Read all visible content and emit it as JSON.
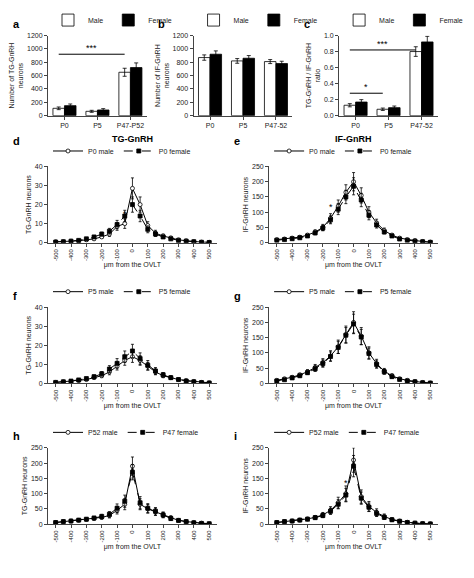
{
  "chart_data": [
    {
      "type": "bar",
      "categories": [
        "P0",
        "P5",
        "P47-P52"
      ],
      "series": [
        {
          "name": "Male",
          "color": "white",
          "values": [
            110,
            65,
            650
          ],
          "error": [
            20,
            15,
            60
          ]
        },
        {
          "name": "Female",
          "color": "black",
          "values": [
            150,
            85,
            720
          ],
          "error": [
            25,
            20,
            70
          ]
        }
      ],
      "ylabel": "Number of TG-GnRH\nneurons",
      "ylim": [
        0,
        1200
      ],
      "yticks": [
        0,
        200,
        400,
        600,
        800,
        1000,
        1200
      ],
      "grid": false,
      "legend": "upper left",
      "annotations": [
        {
          "text": "a"
        },
        {
          "text": "***",
          "x_from": "P0",
          "x_to": "P47-P52",
          "y": 920
        }
      ]
    },
    {
      "type": "bar",
      "categories": [
        "P0",
        "P5",
        "P47-52"
      ],
      "series": [
        {
          "name": "Male",
          "color": "white",
          "values": [
            870,
            820,
            810
          ],
          "error": [
            40,
            35,
            30
          ]
        },
        {
          "name": "Female",
          "color": "black",
          "values": [
            920,
            860,
            780
          ],
          "error": [
            50,
            40,
            35
          ]
        }
      ],
      "ylabel": "Number of IF-GnRH\nneurons",
      "ylim": [
        0,
        1200
      ],
      "yticks": [
        0,
        200,
        400,
        600,
        800,
        1000,
        1200
      ],
      "grid": false,
      "legend": "upper left",
      "annotations": [
        {
          "text": "b"
        }
      ]
    },
    {
      "type": "bar",
      "categories": [
        "P0",
        "P5",
        "P47-52"
      ],
      "series": [
        {
          "name": "Male",
          "color": "white",
          "values": [
            0.13,
            0.08,
            0.8
          ],
          "error": [
            0.02,
            0.015,
            0.06
          ]
        },
        {
          "name": "Female",
          "color": "black",
          "values": [
            0.17,
            0.1,
            0.92
          ],
          "error": [
            0.03,
            0.02,
            0.07
          ]
        }
      ],
      "ylabel": "TG-GnRH / IF-GnRH\nratio",
      "ylim": [
        0,
        1.0
      ],
      "yticks": [
        {
          "value": 0.0,
          "label": "0.0"
        },
        0.2,
        0.4,
        0.6,
        0.8,
        {
          "value": 1.0,
          "label": "1.0"
        }
      ],
      "grid": false,
      "legend": "upper left",
      "annotations": [
        {
          "text": "c"
        },
        {
          "text": "***",
          "x_from": "P0",
          "x_to": "P47-52",
          "y": 0.82
        },
        {
          "text": "*",
          "x_from": "P0",
          "x_to": "P5",
          "y": 0.28
        }
      ]
    },
    {
      "type": "line",
      "title": "TG-GnRH",
      "x": [
        -500,
        -450,
        -400,
        -350,
        -300,
        -250,
        -200,
        -150,
        -100,
        -50,
        0,
        50,
        100,
        150,
        200,
        250,
        300,
        350,
        400,
        450,
        500
      ],
      "xlim": [
        -550,
        550
      ],
      "xticks": [
        -500,
        -400,
        -300,
        -200,
        -100,
        0,
        100,
        200,
        300,
        400,
        500
      ],
      "xlabel": "μm from the OVLT",
      "ylabel": "TG-GnRH neurons",
      "ylim": [
        0,
        40
      ],
      "yticks": [
        0,
        10,
        20,
        30,
        40
      ],
      "grid": false,
      "legend": "upper left",
      "series": [
        {
          "name": "P0 male",
          "color": "black",
          "marker": "open circle",
          "line_style": "solid",
          "values": [
            0.5,
            0.5,
            0.8,
            1.0,
            1.5,
            2.0,
            3.0,
            4.5,
            8.5,
            10.0,
            28.5,
            20.0,
            9.0,
            5.0,
            3.5,
            2.5,
            1.5,
            1.0,
            0.5,
            0.3,
            0.2
          ],
          "error": [
            0.2,
            0.2,
            0.3,
            0.4,
            0.5,
            0.6,
            0.8,
            1.2,
            2.0,
            2.5,
            5.5,
            4.0,
            2.0,
            1.5,
            1.0,
            0.8,
            0.5,
            0.3,
            0.2,
            0.1,
            0.1
          ]
        },
        {
          "name": "P0 female",
          "color": "black",
          "marker": "filled square",
          "line_style": "dashed",
          "values": [
            0.3,
            0.5,
            0.8,
            1.2,
            2.0,
            3.0,
            4.5,
            6.0,
            9.5,
            14.0,
            20.0,
            14.0,
            7.0,
            4.5,
            3.0,
            2.0,
            1.2,
            0.8,
            0.5,
            0.2,
            0.1
          ],
          "error": [
            0.2,
            0.2,
            0.3,
            0.4,
            0.6,
            0.8,
            1.0,
            1.5,
            2.2,
            3.0,
            4.0,
            3.0,
            1.8,
            1.2,
            0.8,
            0.5,
            0.3,
            0.2,
            0.1,
            0.1,
            0.05
          ]
        }
      ],
      "annotations": [
        {
          "text": "d"
        },
        {
          "text": "*",
          "x": -50,
          "y": 11.5
        }
      ]
    },
    {
      "type": "line",
      "title": "IF-GnRH",
      "x": [
        -500,
        -450,
        -400,
        -350,
        -300,
        -250,
        -200,
        -150,
        -100,
        -50,
        0,
        50,
        100,
        150,
        200,
        250,
        300,
        350,
        400,
        450,
        500
      ],
      "xlim": [
        -550,
        550
      ],
      "xticks": [
        -500,
        -400,
        -300,
        -200,
        -100,
        0,
        100,
        200,
        300,
        400,
        500
      ],
      "xlabel": "μm from the OVLT",
      "ylabel": "IF-GnRH neurons",
      "ylim": [
        0,
        250
      ],
      "yticks": [
        0,
        50,
        100,
        150,
        200,
        250
      ],
      "grid": false,
      "legend": "upper left",
      "series": [
        {
          "name": "P0 male",
          "color": "black",
          "marker": "open circle",
          "line_style": "solid",
          "values": [
            10,
            12,
            15,
            18,
            25,
            35,
            50,
            80,
            120,
            165,
            200,
            155,
            100,
            65,
            40,
            25,
            15,
            10,
            7,
            4,
            2
          ],
          "error": [
            2,
            3,
            3,
            4,
            5,
            7,
            10,
            15,
            20,
            25,
            30,
            25,
            18,
            12,
            8,
            5,
            3,
            2,
            1.5,
            1,
            0.5
          ]
        },
        {
          "name": "P0 female",
          "color": "black",
          "marker": "filled square",
          "line_style": "dashed",
          "values": [
            8,
            10,
            13,
            16,
            22,
            32,
            48,
            75,
            110,
            150,
            185,
            140,
            90,
            58,
            35,
            22,
            12,
            8,
            5,
            3,
            1
          ],
          "error": [
            2,
            2,
            3,
            3,
            4,
            6,
            9,
            13,
            18,
            22,
            28,
            22,
            15,
            10,
            6,
            4,
            3,
            2,
            1,
            0.8,
            0.4
          ]
        }
      ],
      "annotations": [
        {
          "text": "e"
        },
        {
          "text": "*",
          "x": -150,
          "y": 95
        }
      ]
    },
    {
      "type": "line",
      "x": [
        -500,
        -450,
        -400,
        -350,
        -300,
        -250,
        -200,
        -150,
        -100,
        -50,
        0,
        50,
        100,
        150,
        200,
        250,
        300,
        350,
        400,
        450,
        500
      ],
      "xlim": [
        -550,
        550
      ],
      "xticks": [
        -500,
        -400,
        -300,
        -200,
        -100,
        0,
        100,
        200,
        300,
        400,
        500
      ],
      "xlabel": "μm from the OVLT",
      "ylabel": "TG-GnRH neurons",
      "ylim": [
        0,
        40
      ],
      "yticks": [
        0,
        10,
        20,
        30,
        40
      ],
      "grid": false,
      "legend": "upper left",
      "series": [
        {
          "name": "P5 male",
          "color": "black",
          "marker": "open circle",
          "line_style": "solid",
          "values": [
            0.5,
            0.8,
            1.0,
            1.5,
            2.0,
            3.0,
            4.0,
            6.0,
            9.0,
            12.0,
            14.0,
            12.0,
            9.0,
            6.0,
            4.0,
            3.0,
            2.0,
            1.5,
            1.0,
            0.5,
            0.3
          ],
          "error": [
            0.2,
            0.3,
            0.3,
            0.4,
            0.5,
            0.7,
            1.0,
            1.5,
            2.0,
            2.5,
            3.0,
            2.5,
            2.0,
            1.5,
            1.0,
            0.7,
            0.5,
            0.3,
            0.3,
            0.2,
            0.1
          ]
        },
        {
          "name": "P5 female",
          "color": "black",
          "marker": "filled square",
          "line_style": "dashed",
          "values": [
            0.5,
            0.8,
            1.2,
            1.8,
            2.5,
            3.5,
            5.0,
            7.5,
            10.5,
            14.0,
            17.0,
            13.0,
            9.5,
            6.5,
            4.5,
            3.0,
            2.0,
            1.2,
            0.8,
            0.4,
            0.2
          ],
          "error": [
            0.2,
            0.3,
            0.4,
            0.5,
            0.7,
            0.9,
            1.2,
            1.8,
            2.5,
            3.0,
            3.5,
            3.0,
            2.5,
            1.8,
            1.2,
            0.8,
            0.5,
            0.3,
            0.2,
            0.1,
            0.1
          ]
        }
      ],
      "annotations": [
        {
          "text": "f"
        }
      ]
    },
    {
      "type": "line",
      "x": [
        -500,
        -450,
        -400,
        -350,
        -300,
        -250,
        -200,
        -150,
        -100,
        -50,
        0,
        50,
        100,
        150,
        200,
        250,
        300,
        350,
        400,
        450,
        500
      ],
      "xlim": [
        -550,
        550
      ],
      "xticks": [
        -500,
        -400,
        -300,
        -200,
        -100,
        0,
        100,
        200,
        300,
        400,
        500
      ],
      "xlabel": "μm from the OVLT",
      "ylabel": "IF-GnRH neurons",
      "ylim": [
        0,
        250
      ],
      "yticks": [
        0,
        50,
        100,
        150,
        200,
        250
      ],
      "grid": false,
      "legend": "upper left",
      "series": [
        {
          "name": "P5 male",
          "color": "black",
          "marker": "open circle",
          "line_style": "solid",
          "values": [
            10,
            15,
            20,
            28,
            38,
            52,
            68,
            90,
            120,
            160,
            200,
            155,
            100,
            65,
            40,
            25,
            15,
            10,
            6,
            3,
            1
          ],
          "error": [
            2,
            3,
            4,
            5,
            7,
            10,
            13,
            17,
            22,
            28,
            35,
            28,
            20,
            14,
            9,
            6,
            4,
            3,
            2,
            1,
            0.5
          ]
        },
        {
          "name": "P5 female",
          "color": "black",
          "marker": "filled square",
          "line_style": "dashed",
          "values": [
            8,
            12,
            18,
            25,
            35,
            48,
            65,
            88,
            118,
            158,
            195,
            152,
            98,
            62,
            38,
            22,
            13,
            8,
            5,
            2,
            1
          ],
          "error": [
            2,
            3,
            4,
            5,
            6,
            9,
            12,
            15,
            20,
            25,
            32,
            25,
            18,
            12,
            8,
            5,
            3,
            2,
            1.5,
            0.8,
            0.4
          ]
        }
      ],
      "annotations": [
        {
          "text": "g"
        }
      ]
    },
    {
      "type": "line",
      "x": [
        -500,
        -450,
        -400,
        -350,
        -300,
        -250,
        -200,
        -150,
        -100,
        -50,
        0,
        50,
        100,
        150,
        200,
        250,
        300,
        350,
        400,
        450,
        500
      ],
      "xlim": [
        -550,
        550
      ],
      "xticks": [
        -500,
        -400,
        -300,
        -200,
        -100,
        0,
        100,
        200,
        300,
        400,
        500
      ],
      "xlabel": "μm from the OVLT",
      "ylabel": "TG-GnRH neurons",
      "ylim": [
        0,
        250
      ],
      "yticks": [
        0,
        50,
        100,
        150,
        200,
        250
      ],
      "grid": false,
      "legend": "upper left",
      "series": [
        {
          "name": "P52 male",
          "color": "black",
          "marker": "open circle",
          "line_style": "solid",
          "values": [
            5,
            8,
            10,
            12,
            15,
            18,
            22,
            28,
            45,
            65,
            190,
            65,
            50,
            40,
            30,
            20,
            12,
            8,
            5,
            3,
            1
          ],
          "error": [
            1,
            2,
            2,
            3,
            4,
            5,
            6,
            8,
            12,
            18,
            30,
            18,
            14,
            12,
            9,
            7,
            4,
            3,
            2,
            1,
            0.5
          ]
        },
        {
          "name": "P47 female",
          "color": "black",
          "marker": "filled square",
          "line_style": "dashed",
          "values": [
            5,
            8,
            10,
            13,
            16,
            20,
            25,
            32,
            52,
            75,
            170,
            70,
            52,
            42,
            30,
            18,
            12,
            8,
            4,
            2,
            1
          ],
          "error": [
            1,
            2,
            2,
            3,
            4,
            5,
            7,
            9,
            14,
            20,
            25,
            20,
            15,
            12,
            9,
            6,
            4,
            3,
            2,
            1,
            0.5
          ]
        }
      ],
      "annotations": [
        {
          "text": "h"
        }
      ]
    },
    {
      "type": "line",
      "x": [
        -500,
        -450,
        -400,
        -350,
        -300,
        -250,
        -200,
        -150,
        -100,
        -50,
        0,
        50,
        100,
        150,
        200,
        250,
        300,
        350,
        400,
        450,
        500
      ],
      "xlim": [
        -550,
        550
      ],
      "xticks": [
        -500,
        -400,
        -300,
        -200,
        -100,
        0,
        100,
        200,
        300,
        400,
        500
      ],
      "xlabel": "μm from the OVLT",
      "ylabel": "IF-GnRH neurons",
      "ylim": [
        0,
        250
      ],
      "yticks": [
        0,
        50,
        100,
        150,
        200,
        250
      ],
      "grid": false,
      "legend": "upper left",
      "series": [
        {
          "name": "P52 male",
          "color": "black",
          "marker": "open circle",
          "line_style": "solid",
          "values": [
            5,
            8,
            10,
            13,
            17,
            22,
            30,
            45,
            70,
            100,
            210,
            90,
            58,
            38,
            25,
            15,
            10,
            6,
            3,
            2,
            1
          ],
          "error": [
            1,
            2,
            2,
            3,
            4,
            6,
            8,
            12,
            18,
            25,
            40,
            22,
            16,
            12,
            8,
            5,
            3,
            2,
            1,
            0.8,
            0.3
          ]
        },
        {
          "name": "P47 female",
          "color": "black",
          "marker": "filled square",
          "line_style": "dashed",
          "values": [
            5,
            8,
            10,
            13,
            16,
            21,
            28,
            42,
            65,
            95,
            190,
            85,
            55,
            35,
            22,
            14,
            9,
            5,
            3,
            1,
            0.5
          ],
          "error": [
            1,
            2,
            2,
            3,
            4,
            5,
            7,
            10,
            15,
            22,
            35,
            20,
            14,
            10,
            7,
            4,
            3,
            2,
            1,
            0.5,
            0.3
          ]
        }
      ],
      "annotations": [
        {
          "text": "i"
        },
        {
          "text": "*",
          "x": -50,
          "y": 112
        }
      ]
    }
  ]
}
